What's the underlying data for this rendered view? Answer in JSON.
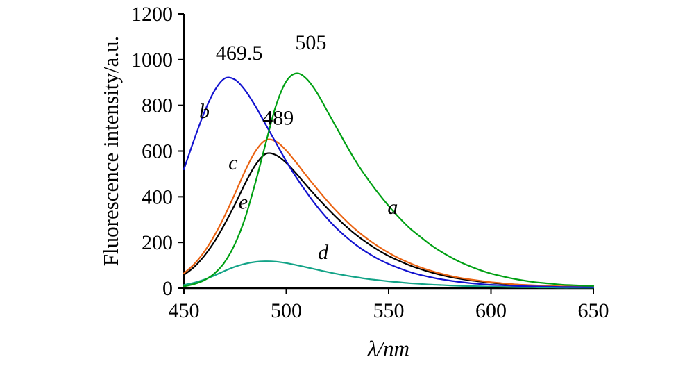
{
  "figure": {
    "background": "#ffffff"
  },
  "chart_data": {
    "type": "line",
    "title": "",
    "xlabel": "λ/nm",
    "ylabel": "Fluorescence intensity/a.u.",
    "xlim": [
      450,
      650
    ],
    "ylim": [
      0,
      1200
    ],
    "xticks": [
      450,
      500,
      550,
      600,
      650
    ],
    "yticks": [
      0,
      200,
      400,
      600,
      800,
      1000,
      1200
    ],
    "grid": false,
    "legend_position": "none",
    "x_nm": [
      450,
      455,
      460,
      465,
      470,
      475,
      480,
      485,
      490,
      495,
      500,
      505,
      510,
      515,
      520,
      525,
      530,
      535,
      540,
      545,
      550,
      555,
      560,
      565,
      570,
      575,
      580,
      585,
      590,
      595,
      600,
      605,
      610,
      615,
      620,
      625,
      630,
      635,
      640,
      645,
      650
    ],
    "series": [
      {
        "name": "a",
        "color": "#00A013",
        "peak_nm": 505,
        "peak_intensity": 940,
        "values": [
          8,
          18,
          35,
          65,
          115,
          195,
          310,
          465,
          635,
          800,
          905,
          940,
          915,
          855,
          775,
          695,
          615,
          540,
          475,
          415,
          360,
          310,
          265,
          228,
          193,
          163,
          137,
          114,
          95,
          78,
          64,
          53,
          43,
          35,
          28,
          23,
          19,
          15,
          13,
          11,
          10
        ]
      },
      {
        "name": "b",
        "color": "#1212CF",
        "peak_nm": 469.5,
        "peak_intensity": 920,
        "values": [
          520,
          650,
          770,
          865,
          918,
          912,
          865,
          795,
          715,
          635,
          555,
          483,
          418,
          358,
          305,
          258,
          218,
          183,
          153,
          127,
          106,
          88,
          72,
          59,
          49,
          40,
          33,
          27,
          22,
          18,
          15,
          13,
          11,
          9,
          8,
          7,
          6,
          5,
          5,
          4,
          4
        ]
      },
      {
        "name": "c",
        "color": "#EA6312",
        "peak_nm": 489,
        "peak_intensity": 650,
        "values": [
          65,
          105,
          160,
          232,
          318,
          415,
          515,
          600,
          648,
          642,
          602,
          548,
          490,
          435,
          382,
          333,
          288,
          248,
          213,
          182,
          155,
          131,
          111,
          93,
          78,
          65,
          54,
          45,
          38,
          32,
          26,
          22,
          18,
          15,
          13,
          11,
          9,
          8,
          7,
          6,
          5
        ]
      },
      {
        "name": "d",
        "color": "#12A387",
        "peak_nm": 490,
        "peak_intensity": 118,
        "values": [
          14,
          24,
          38,
          56,
          76,
          94,
          107,
          115,
          118,
          116,
          110,
          101,
          91,
          81,
          71,
          62,
          54,
          47,
          40,
          35,
          30,
          26,
          22,
          19,
          16,
          14,
          12,
          10,
          9,
          8,
          7,
          6,
          5,
          4,
          4,
          3,
          3,
          2,
          2,
          2,
          2
        ]
      },
      {
        "name": "e",
        "color": "#000000",
        "peak_nm": 490,
        "peak_intensity": 588,
        "values": [
          58,
          93,
          142,
          205,
          282,
          368,
          460,
          540,
          588,
          582,
          548,
          500,
          448,
          398,
          350,
          305,
          264,
          227,
          195,
          166,
          141,
          120,
          101,
          85,
          71,
          59,
          49,
          41,
          34,
          29,
          24,
          20,
          17,
          14,
          12,
          10,
          8,
          7,
          6,
          5,
          5
        ]
      }
    ],
    "peak_annotations": [
      {
        "text": "469.5",
        "x": 477,
        "y": 1000
      },
      {
        "text": "489",
        "x": 496,
        "y": 715
      },
      {
        "text": "505",
        "x": 512,
        "y": 1045
      }
    ],
    "curve_labels": [
      {
        "text": "b",
        "x": 460,
        "y": 745
      },
      {
        "text": "c",
        "x": 474,
        "y": 520
      },
      {
        "text": "e",
        "x": 479,
        "y": 348
      },
      {
        "text": "a",
        "x": 552,
        "y": 325
      },
      {
        "text": "d",
        "x": 518,
        "y": 128
      }
    ]
  }
}
